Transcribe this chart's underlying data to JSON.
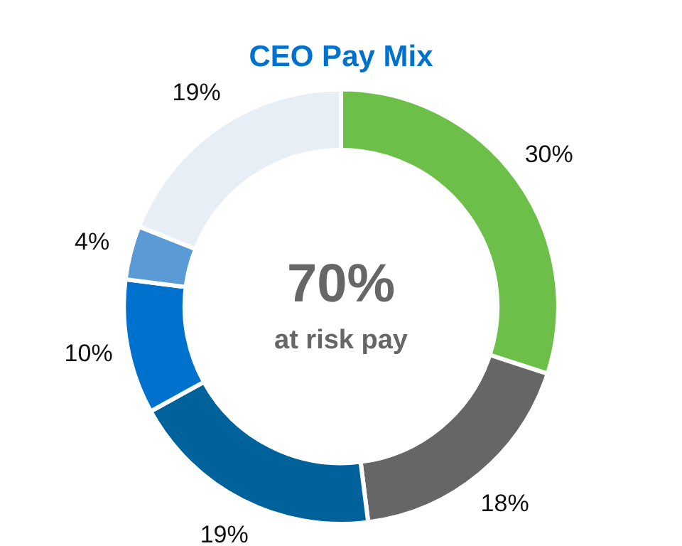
{
  "chart_data": {
    "type": "donut",
    "title": "CEO Pay Mix",
    "categories": [
      null,
      null,
      null,
      null,
      null,
      null
    ],
    "values": [
      30,
      18,
      19,
      10,
      4,
      19
    ],
    "colors": [
      "#6cc04a",
      "#666666",
      "#00629b",
      "#0072ce",
      "#5b9bd5",
      "#e8eef5"
    ],
    "value_labels": [
      "30%",
      "18%",
      "19%",
      "10%",
      "4%",
      "19%"
    ],
    "annotations": [
      "70%",
      "at risk pay"
    ],
    "legend": false
  }
}
